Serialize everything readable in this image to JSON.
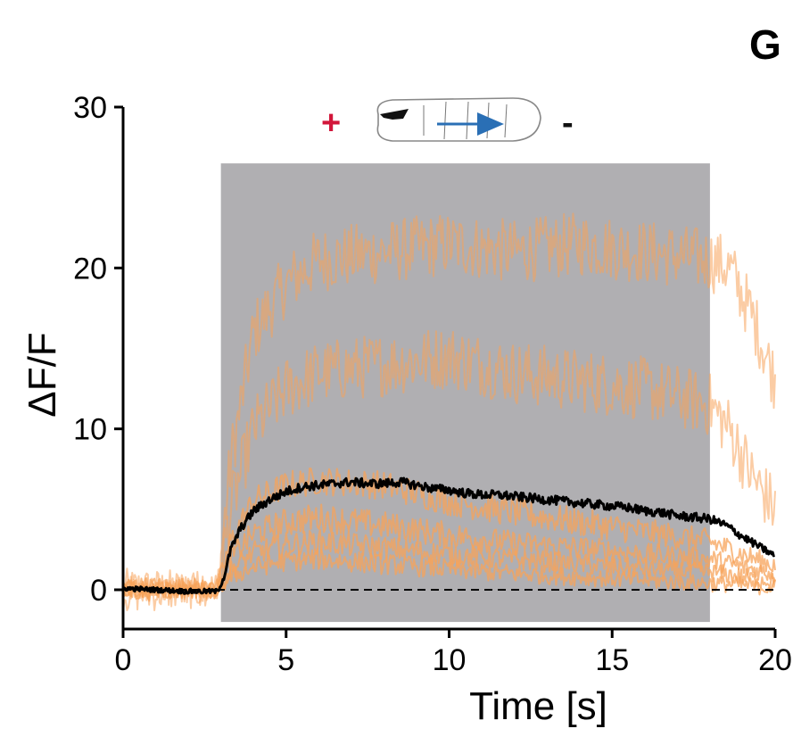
{
  "panel_label": "G",
  "stimulus": {
    "plus_label": "+",
    "minus_label": "-",
    "plus_color": "#d2163a",
    "arrow_color": "#2a6fb5",
    "larva_icon": "larva-icon"
  },
  "colors": {
    "stimulus_shade": "#b0afb2",
    "individual_trace": "#f7a35a",
    "mean_trace": "#000000",
    "baseline": "#000000"
  },
  "chart_data": {
    "type": "line",
    "xlabel": "Time [s]",
    "ylabel": "ΔF/F",
    "xlim": [
      0,
      20
    ],
    "ylim": [
      -2.5,
      30
    ],
    "xticks": [
      0,
      5,
      10,
      15,
      20
    ],
    "xtick_labels": [
      "0",
      "5",
      "10",
      "15",
      "20"
    ],
    "yticks": [
      0,
      10,
      20,
      30
    ],
    "ytick_labels": [
      "0",
      "10",
      "20",
      "30"
    ],
    "grid": false,
    "legend": "none",
    "baseline_y": 0,
    "stimulus_interval": {
      "x": [
        3,
        18
      ],
      "y": [
        -2,
        26.5
      ]
    },
    "series": [
      {
        "role": "mean",
        "x": [
          0,
          1,
          2,
          2.9,
          3.1,
          3.3,
          3.6,
          4,
          4.5,
          5,
          5.5,
          6,
          6.5,
          7,
          7.5,
          8,
          8.5,
          9,
          9.5,
          10,
          10.5,
          11,
          11.5,
          12,
          12.5,
          13,
          13.5,
          14,
          14.5,
          15,
          15.5,
          16,
          16.5,
          17,
          17.5,
          18,
          18.5,
          19,
          19.5,
          20
        ],
        "y": [
          0.1,
          0.0,
          -0.1,
          -0.1,
          0.8,
          2.5,
          3.8,
          4.9,
          5.6,
          6.1,
          6.4,
          6.5,
          6.6,
          6.7,
          6.6,
          6.6,
          6.7,
          6.5,
          6.3,
          6.2,
          6.0,
          5.9,
          5.9,
          5.8,
          5.7,
          5.6,
          5.5,
          5.4,
          5.3,
          5.2,
          5.1,
          4.9,
          4.8,
          4.6,
          4.5,
          4.4,
          4.0,
          3.3,
          2.7,
          2.1
        ]
      },
      {
        "role": "individual",
        "x": [
          0,
          2.9,
          3.3,
          4,
          5,
          6,
          8,
          10,
          12,
          14,
          16,
          18,
          18.6,
          19.3,
          20
        ],
        "y": [
          0.2,
          0.1,
          8,
          16,
          19,
          20.5,
          21,
          21.5,
          21,
          21.5,
          21,
          20.5,
          20,
          17,
          13
        ]
      },
      {
        "role": "individual",
        "x": [
          0,
          2.9,
          3.3,
          4,
          5,
          6,
          8,
          10,
          12,
          14,
          16,
          18,
          18.6,
          19.3,
          20
        ],
        "y": [
          -0.3,
          0.0,
          5,
          10,
          12.5,
          13.5,
          14,
          14.5,
          13.5,
          13,
          12.5,
          11.5,
          10,
          7,
          5
        ]
      },
      {
        "role": "individual",
        "x": [
          0,
          2.9,
          3.3,
          4,
          5,
          6,
          8,
          10,
          12,
          14,
          16,
          18,
          19,
          20
        ],
        "y": [
          0.3,
          0.2,
          3,
          5.5,
          6.5,
          6.8,
          6.5,
          5.5,
          4.8,
          4.2,
          3.6,
          3.0,
          2.2,
          1.5
        ]
      },
      {
        "role": "individual",
        "x": [
          0,
          2.9,
          3.3,
          4,
          5,
          6,
          8,
          10,
          12,
          14,
          16,
          18,
          19,
          20
        ],
        "y": [
          -0.2,
          0.0,
          2,
          3.5,
          4.2,
          4.5,
          4.0,
          3.4,
          2.9,
          2.6,
          2.2,
          1.9,
          1.4,
          1.0
        ]
      },
      {
        "role": "individual",
        "x": [
          0,
          2.9,
          3.3,
          4,
          5,
          6,
          8,
          10,
          12,
          14,
          16,
          18,
          19,
          20
        ],
        "y": [
          0.0,
          -0.1,
          1.2,
          2.3,
          2.8,
          3.0,
          2.6,
          2.2,
          1.9,
          1.6,
          1.3,
          1.1,
          0.8,
          0.5
        ]
      },
      {
        "role": "individual",
        "x": [
          0,
          2.9,
          3.3,
          4,
          5,
          6,
          8,
          10,
          12,
          14,
          16,
          18,
          19,
          20
        ],
        "y": [
          0.1,
          0.0,
          0.8,
          1.4,
          1.8,
          1.9,
          1.6,
          1.3,
          1.0,
          0.8,
          0.6,
          0.4,
          0.3,
          0.1
        ]
      }
    ]
  }
}
